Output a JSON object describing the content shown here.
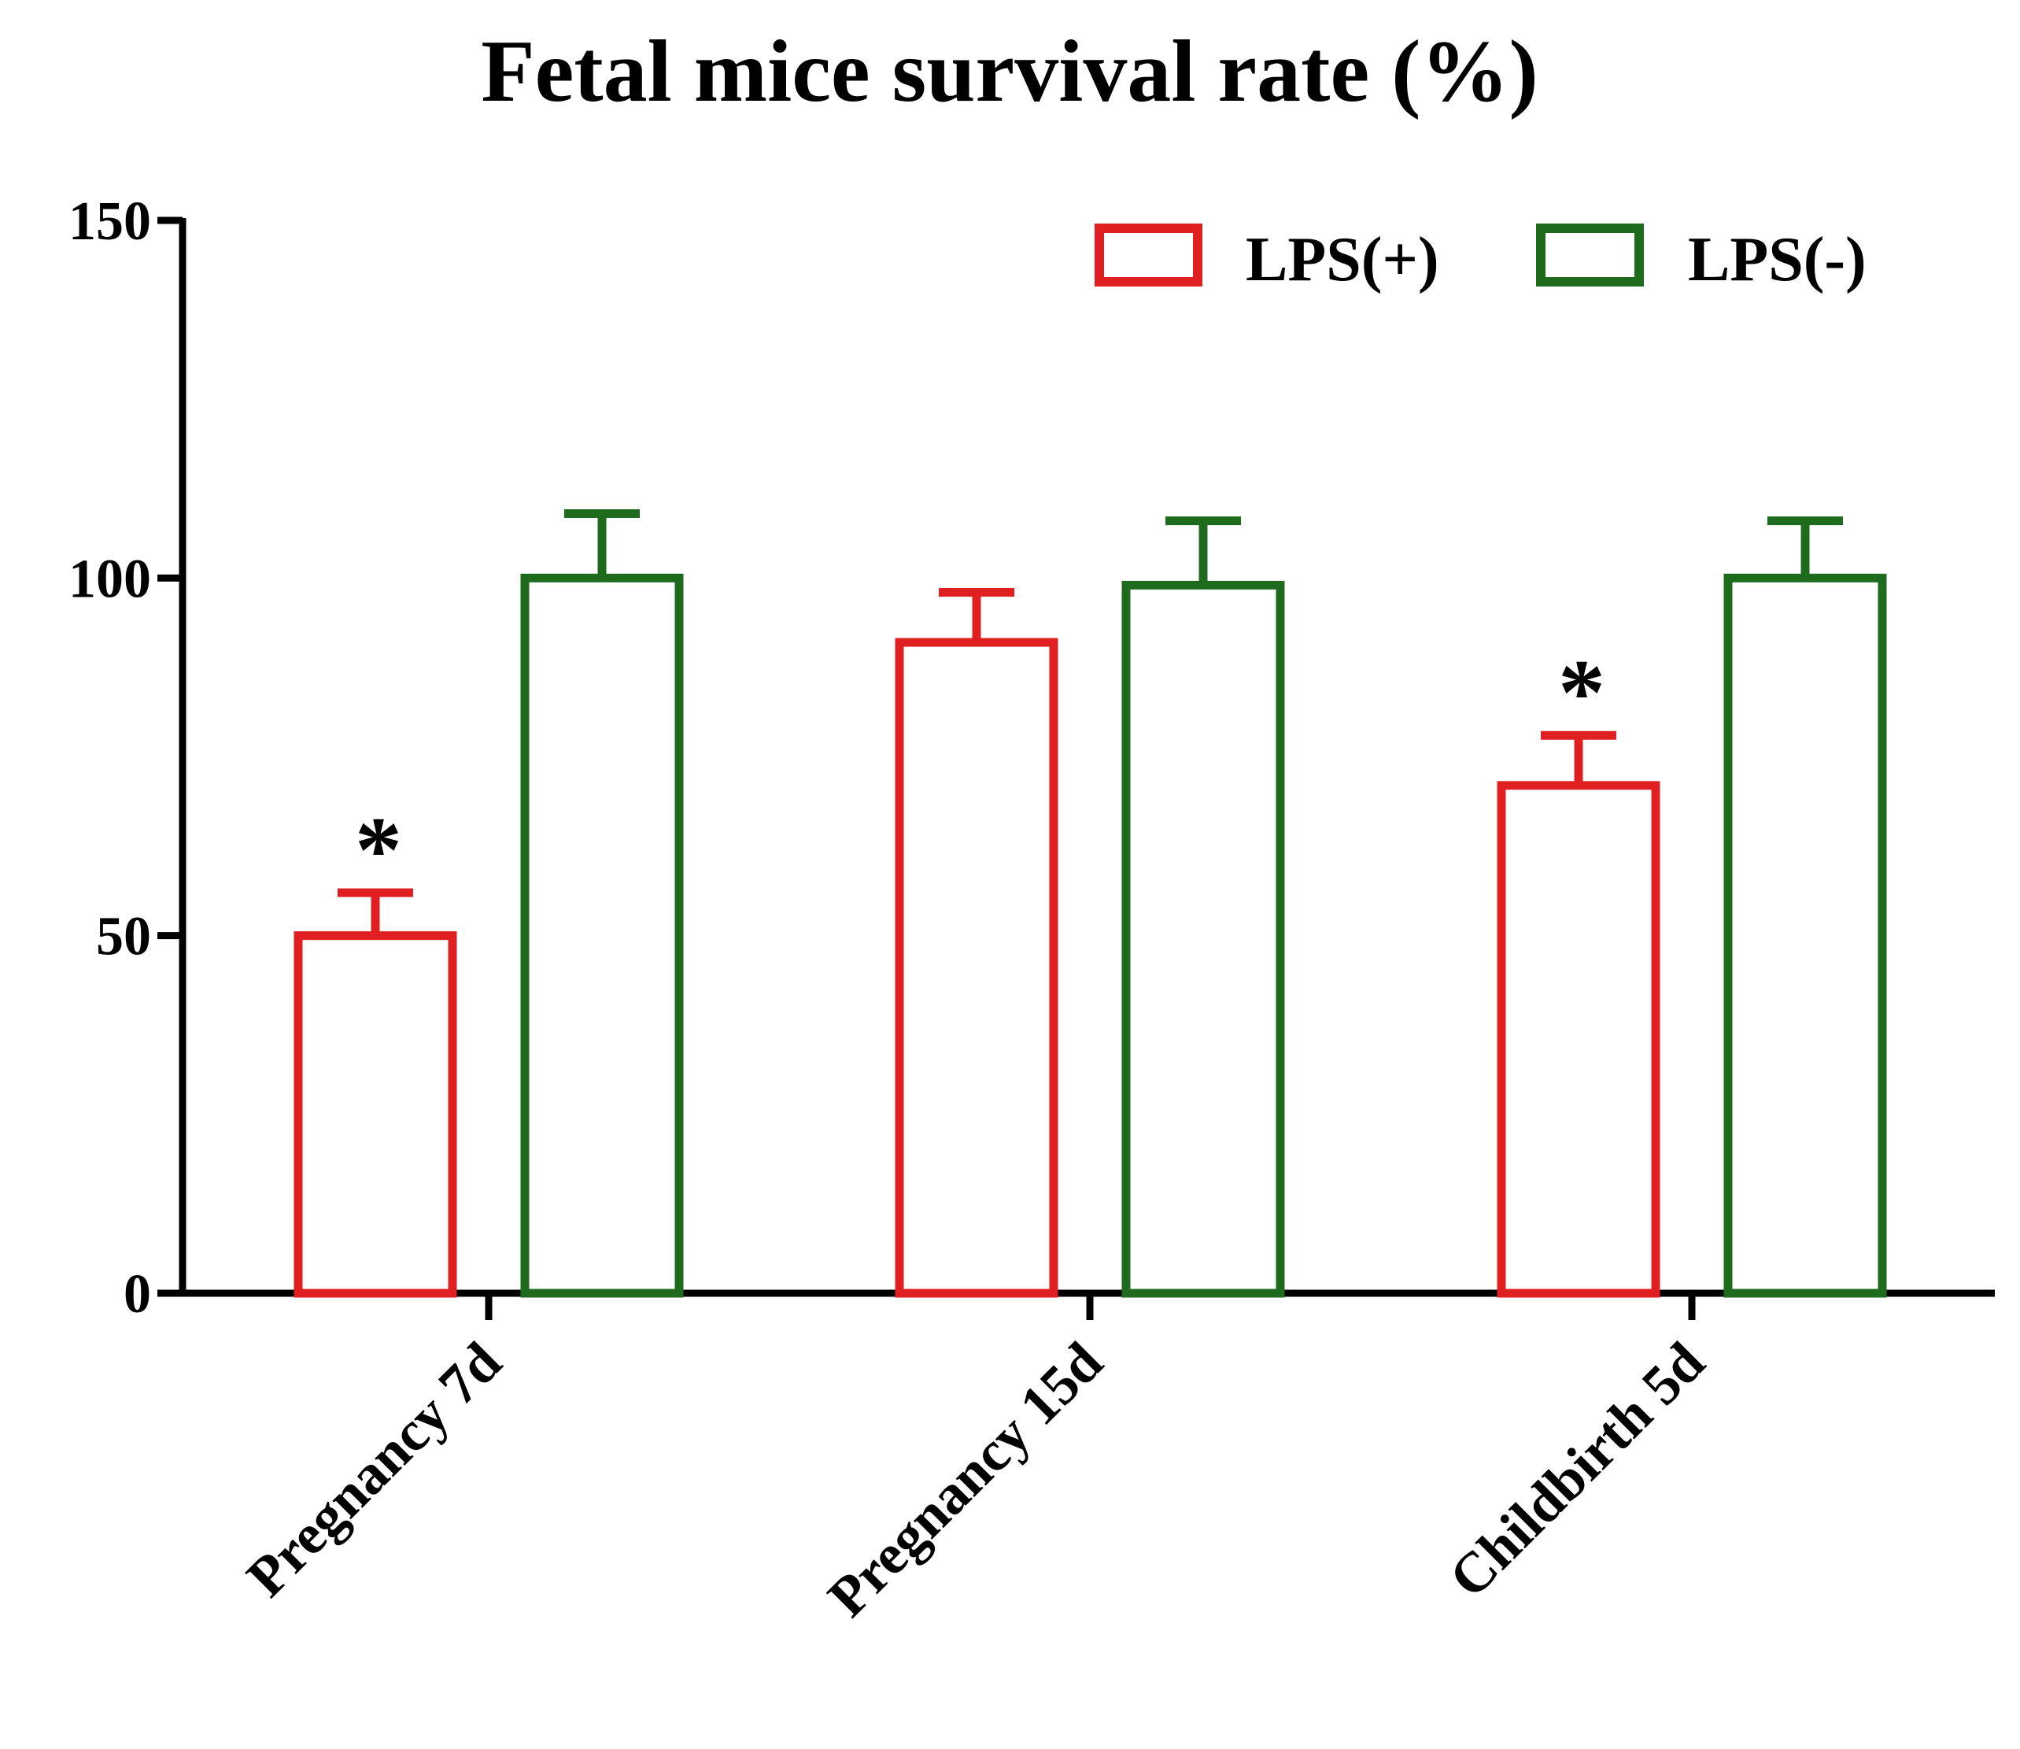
{
  "chart_data": {
    "type": "bar",
    "title": "Fetal mice survival rate (%)",
    "xlabel": "",
    "ylabel": "",
    "ylim": [
      0,
      150
    ],
    "yticks": [
      0,
      50,
      100,
      150
    ],
    "categories": [
      "Pregnancy 7d",
      "Pregnancy 15d",
      "Childbirth 5d"
    ],
    "series": [
      {
        "name": "LPS(+)",
        "color": "#e02020",
        "values": [
          50,
          91,
          71
        ],
        "errors": [
          6,
          7,
          7
        ],
        "annotations": [
          "*",
          "",
          "*"
        ]
      },
      {
        "name": "LPS(-)",
        "color": "#1e6b1e",
        "values": [
          100,
          99,
          100
        ],
        "errors": [
          9,
          9,
          8
        ],
        "annotations": [
          "",
          "",
          ""
        ]
      }
    ],
    "legend": "top-right",
    "grid": false
  }
}
